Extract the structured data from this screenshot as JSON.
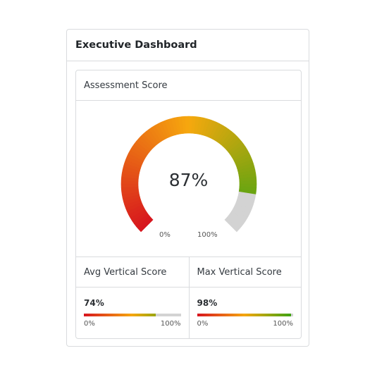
{
  "dashboard": {
    "title": "Executive Dashboard"
  },
  "assessment": {
    "title": "Assessment Score",
    "value_label": "87%",
    "value": 0.87,
    "min_label": "0%",
    "max_label": "100%"
  },
  "avg_vertical": {
    "title": "Avg Vertical Score",
    "value_label": "74%",
    "value": 0.74,
    "min_label": "0%",
    "max_label": "100%"
  },
  "max_vertical": {
    "title": "Max Vertical Score",
    "value_label": "98%",
    "value": 0.98,
    "min_label": "0%",
    "max_label": "100%"
  },
  "colors": {
    "low": "#d7141e",
    "mid": "#f6a80e",
    "high": "#36a312",
    "track": "#d3d3d3",
    "border": "#d9dbde"
  }
}
